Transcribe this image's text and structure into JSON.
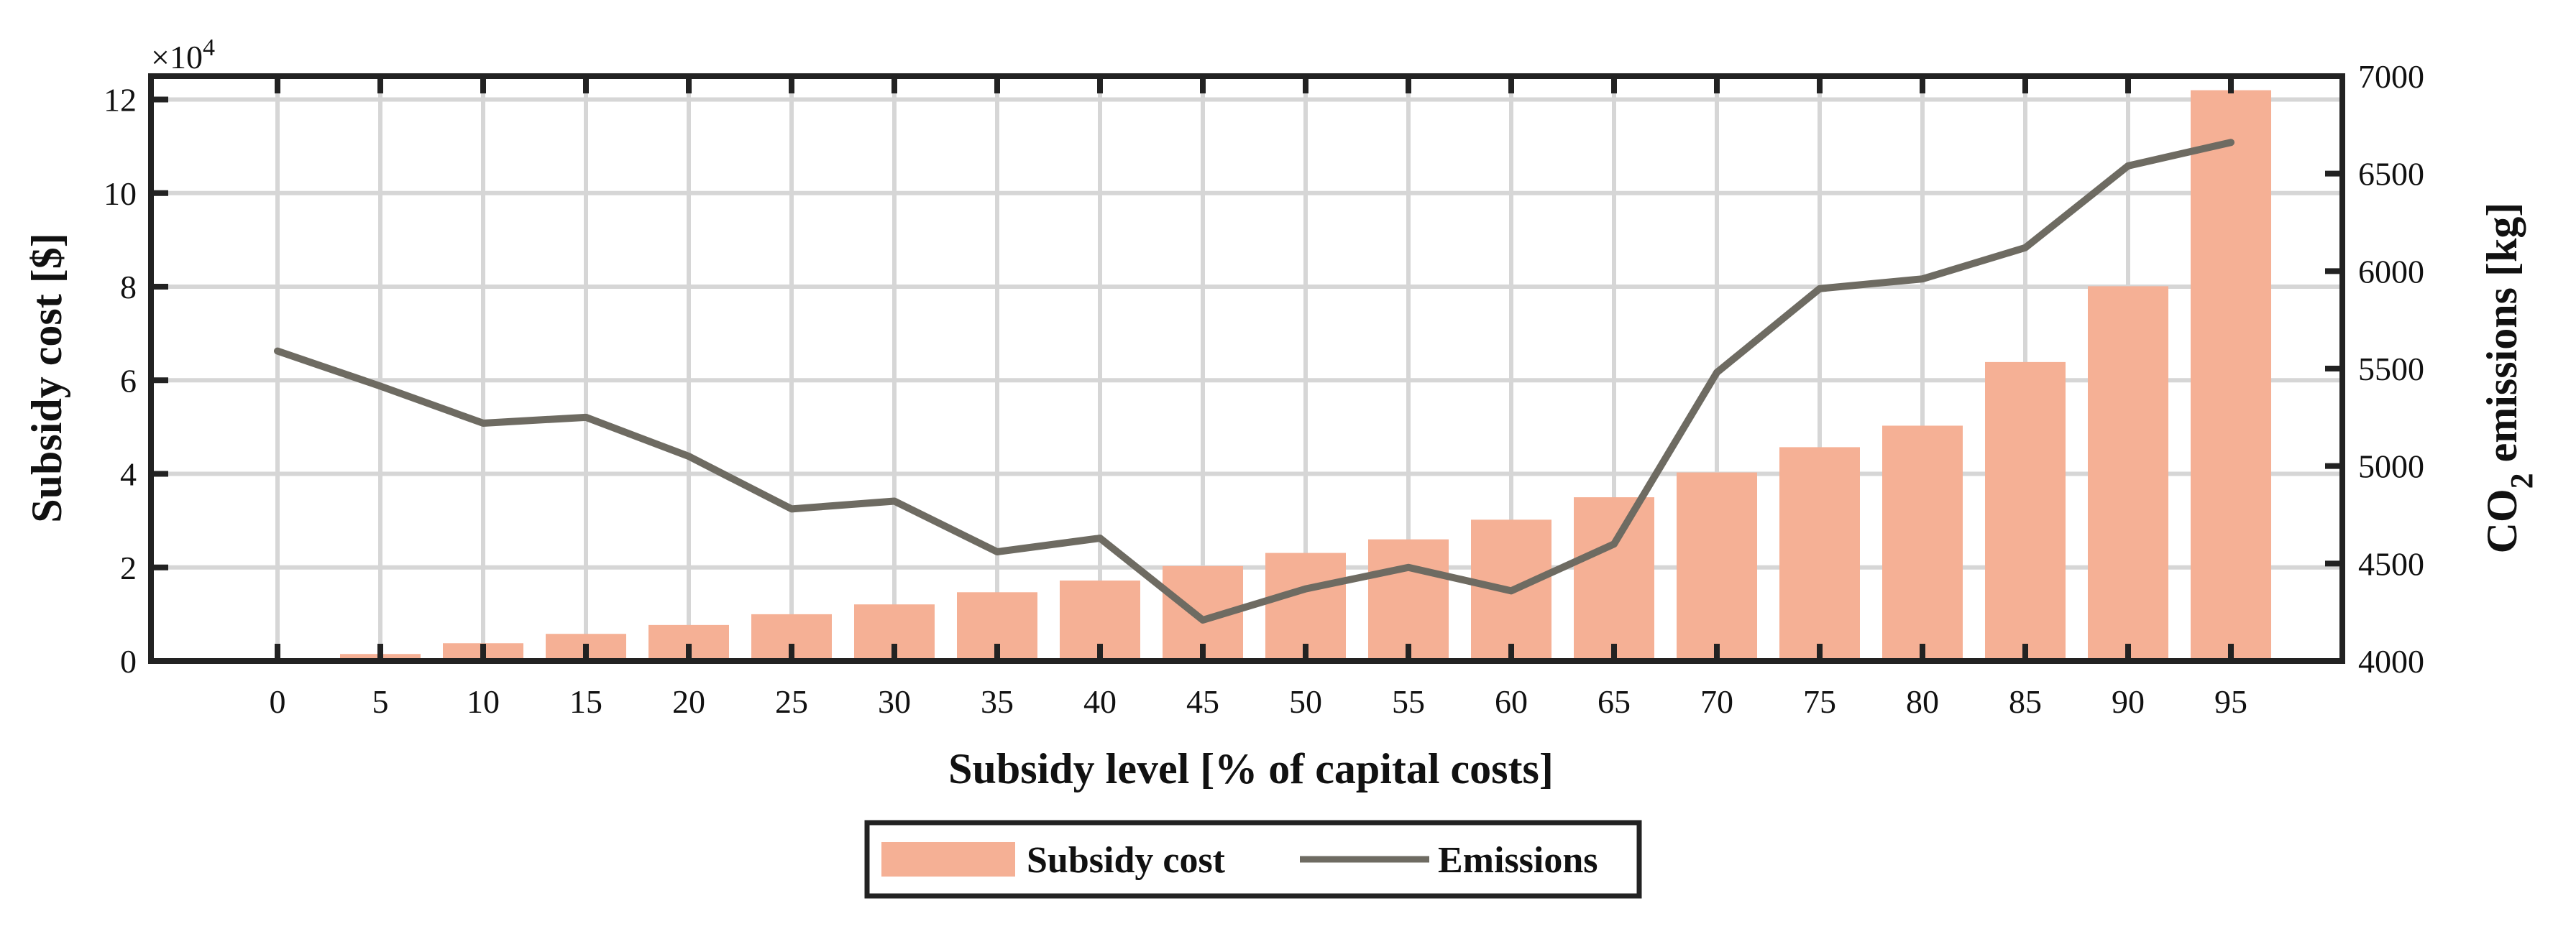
{
  "chart_data": {
    "type": "bar",
    "title": "",
    "categories": [
      "0",
      "5",
      "10",
      "15",
      "20",
      "25",
      "30",
      "35",
      "40",
      "45",
      "50",
      "55",
      "60",
      "65",
      "70",
      "75",
      "80",
      "85",
      "90",
      "95"
    ],
    "xlabel": "Subsidy level [% of capital costs]",
    "series": [
      {
        "name": "Subsidy cost",
        "type": "bar",
        "axis": "left",
        "color": "#f5b095",
        "values": [
          0,
          1500,
          3800,
          5800,
          7700,
          10000,
          12100,
          14700,
          17200,
          20300,
          23100,
          26000,
          30200,
          35000,
          40300,
          45700,
          50300,
          63900,
          80100,
          122000
        ]
      },
      {
        "name": "Emissions",
        "type": "line",
        "axis": "right",
        "color": "#6e6b62",
        "values": [
          5590,
          5410,
          5220,
          5250,
          5050,
          4780,
          4820,
          4560,
          4630,
          4210,
          4370,
          4480,
          4360,
          4600,
          5480,
          5910,
          5960,
          6120,
          6540,
          6660
        ]
      }
    ],
    "y_left": {
      "label": "Subsidy cost [$]",
      "exponent_label": "×10",
      "exponent_power": "4",
      "ylim": [
        0,
        125000
      ],
      "ticks": [
        0,
        20000,
        40000,
        60000,
        80000,
        100000,
        120000
      ],
      "tick_labels": [
        "0",
        "2",
        "4",
        "6",
        "8",
        "10",
        "12"
      ]
    },
    "y_right": {
      "label_main": "CO",
      "label_sub": "2",
      "label_rest": " emissions [kg]",
      "ylim": [
        4000,
        7000
      ],
      "ticks": [
        4000,
        4500,
        5000,
        5500,
        6000,
        6500,
        7000
      ],
      "tick_labels": [
        "4000",
        "4500",
        "5000",
        "5500",
        "6000",
        "6500",
        "7000"
      ]
    },
    "grid": true,
    "legend": {
      "position": "bottom-center",
      "entries": [
        "Subsidy cost",
        "Emissions"
      ]
    }
  }
}
